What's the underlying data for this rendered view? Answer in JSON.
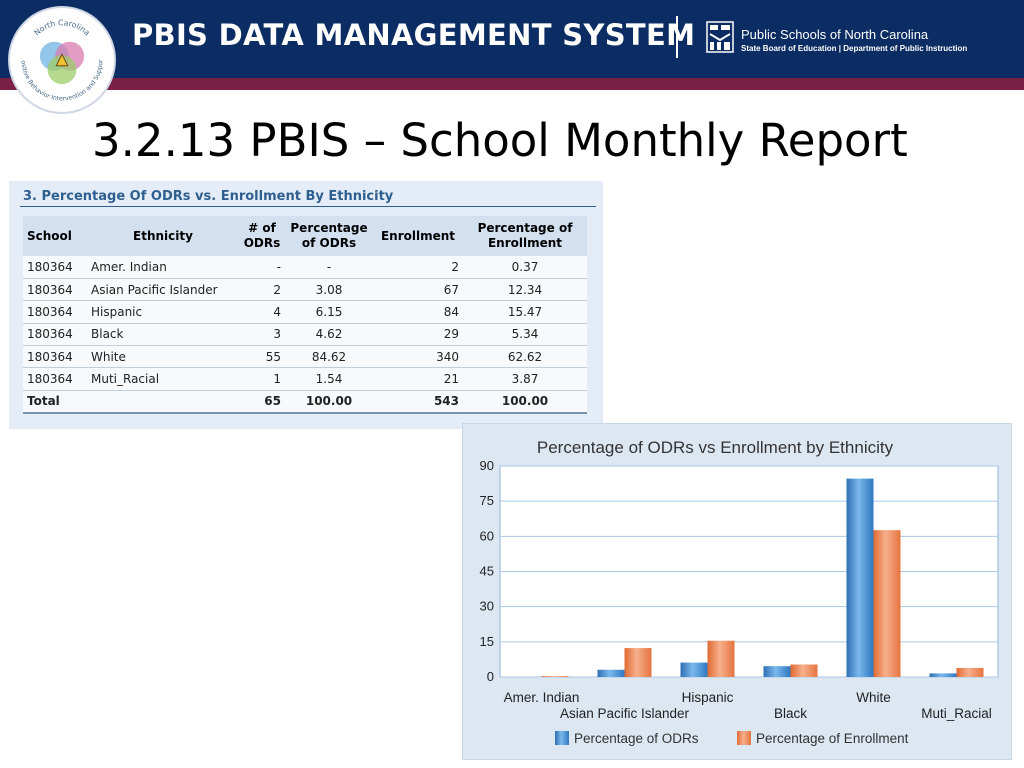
{
  "header": {
    "system_title": "PBIS DATA MANAGEMENT SYSTEM",
    "org_name": "Public Schools of North Carolina",
    "org_sub": "State Board of Education | Department of Public Instruction",
    "logo_text_top": "North Carolina",
    "logo_text_bottom": "Positive Behavior Intervention and Support"
  },
  "slide": {
    "title": "3.2.13 PBIS – School Monthly Report"
  },
  "table": {
    "title": "3. Percentage Of ODRs vs. Enrollment By Ethnicity",
    "headers": {
      "school": "School",
      "ethnicity": "Ethnicity",
      "odrs_l1": "# of",
      "odrs_l2": "ODRs",
      "pct_odrs_l1": "Percentage",
      "pct_odrs_l2": "of ODRs",
      "enrollment": "Enrollment",
      "pct_enr_l1": "Percentage of",
      "pct_enr_l2": "Enrollment"
    },
    "rows": [
      {
        "school": "180364",
        "ethnicity": "Amer. Indian",
        "odrs": "-",
        "pct_odrs": "-",
        "enrollment": "2",
        "pct_enrollment": "0.37"
      },
      {
        "school": "180364",
        "ethnicity": "Asian Pacific Islander",
        "odrs": "2",
        "pct_odrs": "3.08",
        "enrollment": "67",
        "pct_enrollment": "12.34"
      },
      {
        "school": "180364",
        "ethnicity": "Hispanic",
        "odrs": "4",
        "pct_odrs": "6.15",
        "enrollment": "84",
        "pct_enrollment": "15.47"
      },
      {
        "school": "180364",
        "ethnicity": "Black",
        "odrs": "3",
        "pct_odrs": "4.62",
        "enrollment": "29",
        "pct_enrollment": "5.34"
      },
      {
        "school": "180364",
        "ethnicity": "White",
        "odrs": "55",
        "pct_odrs": "84.62",
        "enrollment": "340",
        "pct_enrollment": "62.62"
      },
      {
        "school": "180364",
        "ethnicity": "Muti_Racial",
        "odrs": "1",
        "pct_odrs": "1.54",
        "enrollment": "21",
        "pct_enrollment": "3.87"
      }
    ],
    "total": {
      "label": "Total",
      "odrs": "65",
      "pct_odrs": "100.00",
      "enrollment": "543",
      "pct_enrollment": "100.00"
    }
  },
  "colors": {
    "banner": "#0b2d63",
    "stripe": "#7a1f45",
    "series_odrs": "#4a90d2",
    "series_enrollment": "#f08a57"
  },
  "chart_data": {
    "type": "bar",
    "title": "Percentage of ODRs vs Enrollment by Ethnicity",
    "categories": [
      "Amer. Indian",
      "Asian Pacific Islander",
      "Hispanic",
      "Black",
      "White",
      "Muti_Racial"
    ],
    "series": [
      {
        "name": "Percentage of ODRs",
        "values": [
          0,
          3.08,
          6.15,
          4.62,
          84.62,
          1.54
        ]
      },
      {
        "name": "Percentage of Enrollment",
        "values": [
          0.37,
          12.34,
          15.47,
          5.34,
          62.62,
          3.87
        ]
      }
    ],
    "ylim": [
      0,
      90
    ],
    "yticks": [
      "0",
      "15",
      "30",
      "45",
      "60",
      "75",
      "90"
    ],
    "grid": true,
    "legend": "bottom",
    "xlabel": "",
    "ylabel": ""
  }
}
